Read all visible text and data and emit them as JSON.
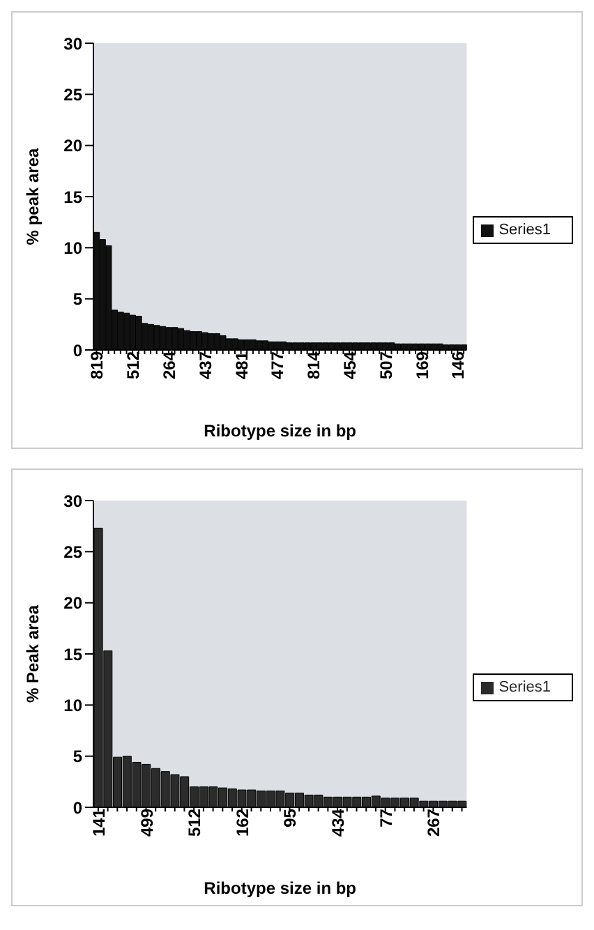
{
  "chart_data": [
    {
      "type": "bar",
      "xlabel": "Ribotype size in bp",
      "ylabel": "% peak area",
      "categories": [
        "819",
        null,
        null,
        null,
        null,
        null,
        "512",
        null,
        null,
        null,
        null,
        null,
        "264",
        null,
        null,
        null,
        null,
        null,
        "437",
        null,
        null,
        null,
        null,
        null,
        "481",
        null,
        null,
        null,
        null,
        null,
        "477",
        null,
        null,
        null,
        null,
        null,
        "814",
        null,
        null,
        null,
        null,
        null,
        "454",
        null,
        null,
        null,
        null,
        null,
        "507",
        null,
        null,
        null,
        null,
        null,
        "169",
        null,
        null,
        null,
        null,
        null,
        "146",
        null
      ],
      "series": [
        {
          "name": "Series1",
          "color": "#111111",
          "values": [
            11.5,
            10.8,
            10.2,
            3.9,
            3.7,
            3.6,
            3.4,
            3.3,
            2.6,
            2.5,
            2.4,
            2.3,
            2.2,
            2.2,
            2.1,
            1.9,
            1.8,
            1.8,
            1.7,
            1.6,
            1.6,
            1.4,
            1.1,
            1.1,
            1.0,
            1.0,
            1.0,
            0.9,
            0.9,
            0.8,
            0.8,
            0.8,
            0.7,
            0.7,
            0.7,
            0.7,
            0.7,
            0.7,
            0.7,
            0.7,
            0.7,
            0.7,
            0.7,
            0.7,
            0.7,
            0.7,
            0.7,
            0.7,
            0.7,
            0.7,
            0.6,
            0.6,
            0.6,
            0.6,
            0.6,
            0.6,
            0.6,
            0.6,
            0.5,
            0.5,
            0.5,
            0.5
          ]
        }
      ],
      "ylim": [
        0,
        30
      ],
      "yticks": [
        0,
        5,
        10,
        15,
        20,
        25,
        30
      ],
      "legend": "right"
    },
    {
      "type": "bar",
      "xlabel": "Ribotype size in bp",
      "ylabel": "% Peak area",
      "categories": [
        "141",
        null,
        null,
        null,
        null,
        "499",
        null,
        null,
        null,
        null,
        "512",
        null,
        null,
        null,
        null,
        "162",
        null,
        null,
        null,
        null,
        "95",
        null,
        null,
        null,
        null,
        "434",
        null,
        null,
        null,
        null,
        "77",
        null,
        null,
        null,
        null,
        "267",
        null,
        null,
        null
      ],
      "series": [
        {
          "name": "Series1",
          "color": "#2b2b2b",
          "values": [
            27.3,
            15.3,
            4.9,
            5.0,
            4.4,
            4.2,
            3.8,
            3.5,
            3.2,
            3.0,
            2.0,
            2.0,
            2.0,
            1.9,
            1.8,
            1.7,
            1.7,
            1.6,
            1.6,
            1.6,
            1.4,
            1.4,
            1.2,
            1.2,
            1.0,
            1.0,
            1.0,
            1.0,
            1.0,
            1.1,
            0.9,
            0.9,
            0.9,
            0.9,
            0.6,
            0.6,
            0.6,
            0.6,
            0.6
          ]
        }
      ],
      "ylim": [
        0,
        30
      ],
      "yticks": [
        0,
        5,
        10,
        15,
        20,
        25,
        30
      ],
      "legend": "right"
    }
  ]
}
